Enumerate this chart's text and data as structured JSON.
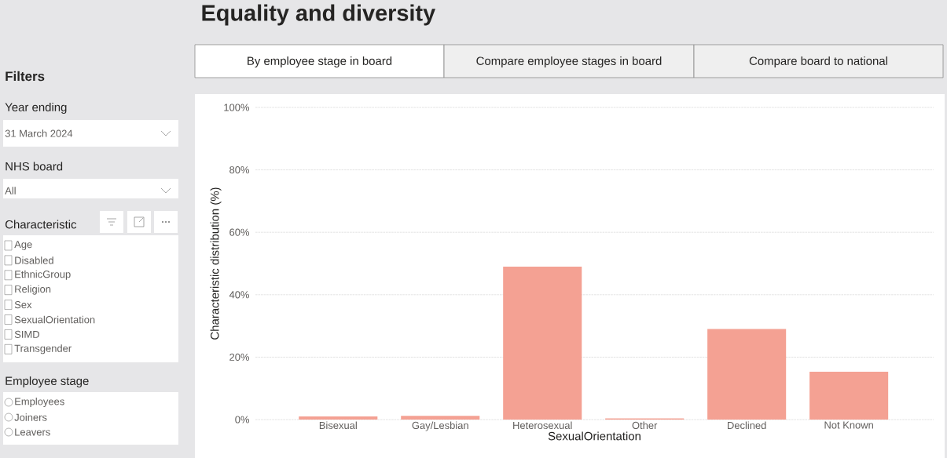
{
  "chart_data": {
    "type": "bar",
    "title": "Equality and diversity",
    "xlabel": "SexualOrientation",
    "ylabel": "Characteristic distribution (%)",
    "categories": [
      "Bisexual",
      "Gay/Lesbian",
      "Heterosexual",
      "Other",
      "Declined",
      "Not Known"
    ],
    "values": [
      1.0,
      1.2,
      49,
      0.4,
      29,
      15.3
    ],
    "color": "#f4a193",
    "ylim": [
      0,
      100
    ],
    "yticks": [
      {
        "value": 0,
        "label": "0%"
      },
      {
        "value": 20,
        "label": "20%"
      },
      {
        "value": 40,
        "label": "40%"
      },
      {
        "value": 60,
        "label": "60%"
      },
      {
        "value": 80,
        "label": "80%"
      },
      {
        "value": 100,
        "label": "100%"
      }
    ],
    "grid": "y",
    "annotations": [
      "By employee stage in board",
      "Compare employee stages in board",
      "Compare board to national",
      "Filters",
      "Year ending",
      "31 March 2024",
      "NHS board",
      "All",
      "Characteristic",
      "Age",
      "Disabled",
      "EthnicGroup",
      "Religion",
      "Sex",
      "SexualOrientation",
      "SIMD",
      "Transgender",
      "Employee stage",
      "Employees",
      "Joiners",
      "Leavers"
    ]
  }
}
